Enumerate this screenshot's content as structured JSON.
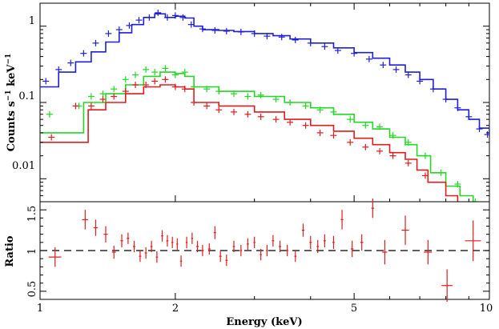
{
  "chart_data": [
    {
      "type": "line",
      "panel": "spectrum",
      "xlabel": "",
      "ylabel": "Counts s",
      "ylabel_sup1": "−1",
      "ylabel_mid": " keV",
      "ylabel_sup2": "−1",
      "xscale": "log",
      "yscale": "log",
      "xlim": [
        1,
        10
      ],
      "ylim": [
        0.005,
        2
      ],
      "y_ticks": [
        {
          "value": 0.01,
          "label": "0.01"
        },
        {
          "value": 0.1,
          "label": "0.1"
        },
        {
          "value": 1,
          "label": "1"
        }
      ],
      "colors": {
        "blue": "#1f1fd6",
        "green": "#22d822",
        "red": "#e01d1d"
      },
      "series": [
        {
          "color": "blue",
          "model_x": [
            1.0,
            1.1,
            1.2,
            1.3,
            1.4,
            1.5,
            1.6,
            1.7,
            1.8,
            1.9,
            2.0,
            2.1,
            2.2,
            2.3,
            2.5,
            2.7,
            3.0,
            3.3,
            3.6,
            4.0,
            4.5,
            5.0,
            5.5,
            6.0,
            6.5,
            7.0,
            7.5,
            8.0,
            8.5,
            9.0,
            9.5,
            10.0
          ],
          "model_y": [
            0.16,
            0.25,
            0.34,
            0.46,
            0.62,
            0.82,
            1.05,
            1.3,
            1.45,
            1.3,
            1.35,
            1.28,
            1.0,
            0.9,
            0.88,
            0.85,
            0.8,
            0.75,
            0.68,
            0.6,
            0.52,
            0.45,
            0.38,
            0.31,
            0.25,
            0.2,
            0.15,
            0.11,
            0.08,
            0.06,
            0.046,
            0.036
          ],
          "data_x": [
            1.03,
            1.1,
            1.17,
            1.25,
            1.33,
            1.42,
            1.5,
            1.58,
            1.66,
            1.75,
            1.83,
            1.92,
            2.0,
            2.08,
            2.17,
            2.3,
            2.45,
            2.6,
            2.8,
            3.0,
            3.2,
            3.45,
            3.7,
            4.0,
            4.3,
            4.6,
            5.0,
            5.4,
            5.8,
            6.2,
            6.6,
            7.0,
            7.5,
            8.0,
            8.5,
            9.0,
            9.5,
            9.9
          ],
          "data_y": [
            0.19,
            0.27,
            0.33,
            0.44,
            0.6,
            0.8,
            0.9,
            1.02,
            1.2,
            1.3,
            1.5,
            1.3,
            1.38,
            1.3,
            1.05,
            0.92,
            0.88,
            0.86,
            0.84,
            0.8,
            0.74,
            0.72,
            0.66,
            0.6,
            0.54,
            0.48,
            0.44,
            0.37,
            0.31,
            0.27,
            0.23,
            0.19,
            0.15,
            0.11,
            0.085,
            0.065,
            0.045,
            0.038
          ]
        },
        {
          "color": "green",
          "model_x": [
            1.0,
            1.2,
            1.25,
            1.4,
            1.55,
            1.7,
            1.85,
            2.0,
            2.1,
            2.2,
            2.5,
            3.0,
            3.5,
            4.0,
            4.5,
            5.0,
            5.5,
            6.0,
            6.5,
            6.9,
            7.4,
            8.0,
            8.6,
            9.2,
            9.6,
            10.0
          ],
          "model_y": [
            0.04,
            0.04,
            0.1,
            0.13,
            0.17,
            0.22,
            0.25,
            0.24,
            0.22,
            0.16,
            0.14,
            0.12,
            0.1,
            0.085,
            0.07,
            0.055,
            0.045,
            0.035,
            0.028,
            0.02,
            0.012,
            0.008,
            0.006,
            0.0045,
            0.004,
            0.004
          ],
          "data_x": [
            1.05,
            1.22,
            1.3,
            1.38,
            1.46,
            1.55,
            1.63,
            1.72,
            1.8,
            1.9,
            2.0,
            2.1,
            2.2,
            2.35,
            2.5,
            2.7,
            2.9,
            3.1,
            3.35,
            3.6,
            3.9,
            4.2,
            4.5,
            4.9,
            5.3,
            5.7,
            6.1,
            6.6,
            7.2,
            7.8,
            8.5,
            9.3
          ],
          "data_y": [
            0.07,
            0.09,
            0.12,
            0.13,
            0.15,
            0.2,
            0.23,
            0.27,
            0.25,
            0.28,
            0.23,
            0.25,
            0.16,
            0.15,
            0.14,
            0.13,
            0.12,
            0.125,
            0.11,
            0.1,
            0.09,
            0.08,
            0.075,
            0.06,
            0.05,
            0.048,
            0.037,
            0.03,
            0.02,
            0.012,
            0.0085,
            0.005
          ]
        },
        {
          "color": "red",
          "model_x": [
            1.0,
            1.23,
            1.28,
            1.4,
            1.55,
            1.7,
            1.85,
            2.0,
            2.1,
            2.2,
            2.5,
            3.0,
            3.5,
            4.0,
            4.5,
            5.0,
            5.5,
            6.0,
            6.5,
            6.9,
            7.3,
            8.0,
            8.5,
            9.0,
            9.5,
            10.0
          ],
          "model_y": [
            0.03,
            0.03,
            0.08,
            0.1,
            0.13,
            0.16,
            0.17,
            0.16,
            0.15,
            0.1,
            0.09,
            0.075,
            0.06,
            0.05,
            0.042,
            0.034,
            0.028,
            0.022,
            0.018,
            0.013,
            0.009,
            0.006,
            0.0045,
            0.0045,
            0.0045,
            0.0045
          ],
          "data_x": [
            1.06,
            1.2,
            1.3,
            1.38,
            1.46,
            1.55,
            1.63,
            1.72,
            1.8,
            1.9,
            2.0,
            2.1,
            2.2,
            2.35,
            2.5,
            2.7,
            2.9,
            3.1,
            3.35,
            3.6,
            3.9,
            4.2,
            4.5,
            4.9,
            5.3,
            5.7,
            6.1,
            6.6,
            7.2,
            8.1
          ],
          "data_y": [
            0.035,
            0.09,
            0.09,
            0.11,
            0.12,
            0.14,
            0.17,
            0.17,
            0.19,
            0.2,
            0.16,
            0.15,
            0.1,
            0.09,
            0.08,
            0.075,
            0.07,
            0.065,
            0.06,
            0.055,
            0.05,
            0.04,
            0.037,
            0.03,
            0.026,
            0.023,
            0.02,
            0.016,
            0.011,
            0.0045
          ]
        }
      ]
    },
    {
      "type": "scatter",
      "panel": "ratio",
      "xlabel": "Energy (keV)",
      "ylabel": "Ratio",
      "xscale": "log",
      "xlim": [
        1,
        10
      ],
      "ylim": [
        0.4,
        1.6
      ],
      "reference_line": 1,
      "x_ticks": [
        {
          "value": 1,
          "label": "1"
        },
        {
          "value": 2,
          "label": "2"
        },
        {
          "value": 5,
          "label": "5"
        },
        {
          "value": 10,
          "label": "10"
        }
      ],
      "y_ticks": [
        {
          "value": 0.5,
          "label": "0.5"
        },
        {
          "value": 1,
          "label": "1"
        },
        {
          "value": 1.5,
          "label": "1.5"
        }
      ],
      "color": "red",
      "points": [
        [
          1.08,
          0.92,
          0.07,
          0.12
        ],
        [
          1.26,
          1.38,
          0.04,
          0.12
        ],
        [
          1.33,
          1.28,
          0.03,
          0.1
        ],
        [
          1.4,
          1.2,
          0.03,
          0.1
        ],
        [
          1.46,
          0.98,
          0.03,
          0.08
        ],
        [
          1.52,
          1.12,
          0.02,
          0.08
        ],
        [
          1.57,
          1.15,
          0.02,
          0.07
        ],
        [
          1.62,
          1.05,
          0.02,
          0.07
        ],
        [
          1.67,
          0.93,
          0.02,
          0.07
        ],
        [
          1.72,
          0.97,
          0.02,
          0.07
        ],
        [
          1.77,
          1.05,
          0.02,
          0.07
        ],
        [
          1.82,
          0.92,
          0.02,
          0.07
        ],
        [
          1.87,
          1.18,
          0.02,
          0.07
        ],
        [
          1.92,
          1.12,
          0.02,
          0.07
        ],
        [
          1.97,
          1.1,
          0.02,
          0.07
        ],
        [
          2.02,
          1.08,
          0.02,
          0.07
        ],
        [
          2.06,
          0.87,
          0.02,
          0.07
        ],
        [
          2.12,
          1.1,
          0.02,
          0.07
        ],
        [
          2.18,
          1.15,
          0.02,
          0.07
        ],
        [
          2.24,
          1.05,
          0.03,
          0.07
        ],
        [
          2.3,
          1.0,
          0.03,
          0.07
        ],
        [
          2.38,
          1.02,
          0.03,
          0.07
        ],
        [
          2.45,
          1.22,
          0.03,
          0.08
        ],
        [
          2.52,
          0.93,
          0.03,
          0.07
        ],
        [
          2.6,
          0.88,
          0.03,
          0.07
        ],
        [
          2.7,
          1.05,
          0.03,
          0.07
        ],
        [
          2.8,
          1.0,
          0.03,
          0.07
        ],
        [
          2.9,
          1.08,
          0.03,
          0.07
        ],
        [
          3.0,
          1.1,
          0.03,
          0.07
        ],
        [
          3.1,
          0.95,
          0.03,
          0.07
        ],
        [
          3.2,
          1.0,
          0.03,
          0.07
        ],
        [
          3.3,
          1.12,
          0.04,
          0.07
        ],
        [
          3.42,
          1.05,
          0.04,
          0.07
        ],
        [
          3.55,
          1.0,
          0.04,
          0.07
        ],
        [
          3.7,
          0.93,
          0.04,
          0.07
        ],
        [
          3.85,
          1.25,
          0.05,
          0.08
        ],
        [
          4.0,
          1.1,
          0.05,
          0.08
        ],
        [
          4.15,
          1.05,
          0.05,
          0.08
        ],
        [
          4.3,
          1.12,
          0.05,
          0.08
        ],
        [
          4.5,
          1.1,
          0.05,
          0.08
        ],
        [
          4.7,
          1.38,
          0.06,
          0.12
        ],
        [
          4.95,
          1.02,
          0.07,
          0.1
        ],
        [
          5.2,
          1.1,
          0.08,
          0.1
        ],
        [
          5.5,
          1.52,
          0.08,
          0.12
        ],
        [
          5.85,
          0.98,
          0.15,
          0.15
        ],
        [
          6.5,
          1.25,
          0.25,
          0.18
        ],
        [
          7.3,
          0.98,
          0.3,
          0.15
        ],
        [
          8.05,
          0.57,
          0.45,
          0.2
        ],
        [
          9.2,
          1.12,
          0.75,
          0.25
        ]
      ]
    }
  ]
}
